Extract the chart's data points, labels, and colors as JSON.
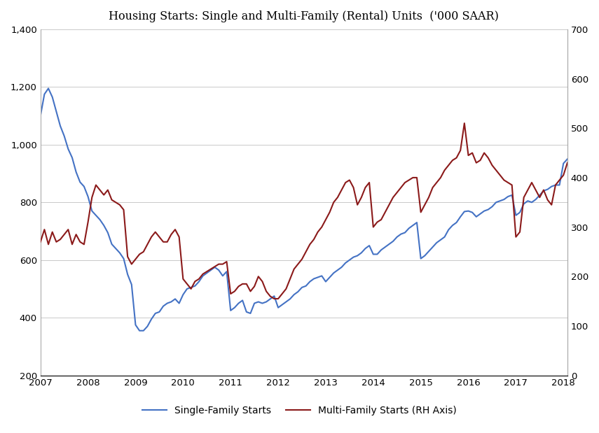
{
  "title": "Housing Starts: Single and Multi-Family (Rental) Units  ('000 SAAR)",
  "left_ylim": [
    200,
    1400
  ],
  "right_ylim": [
    0,
    700
  ],
  "left_yticks": [
    200,
    400,
    600,
    800,
    1000,
    1200,
    1400
  ],
  "right_yticks": [
    0,
    100,
    200,
    300,
    400,
    500,
    600,
    700
  ],
  "xticks": [
    2007,
    2008,
    2009,
    2010,
    2011,
    2012,
    2013,
    2014,
    2015,
    2016,
    2017,
    2018
  ],
  "single_family_color": "#4472C4",
  "multi_family_color": "#8B1A1A",
  "single_label": "Single-Family Starts",
  "multi_label": "Multi-Family Starts (RH Axis)",
  "background_color": "#FFFFFF",
  "line_width": 1.5,
  "single_family": [
    1100,
    1175,
    1195,
    1165,
    1115,
    1065,
    1030,
    985,
    955,
    905,
    870,
    855,
    820,
    770,
    755,
    740,
    720,
    695,
    655,
    640,
    625,
    605,
    550,
    515,
    375,
    355,
    355,
    370,
    395,
    415,
    420,
    440,
    450,
    455,
    465,
    450,
    480,
    500,
    505,
    510,
    525,
    545,
    555,
    565,
    575,
    565,
    545,
    560,
    425,
    435,
    450,
    460,
    420,
    415,
    450,
    455,
    450,
    455,
    465,
    475,
    435,
    445,
    455,
    465,
    480,
    490,
    505,
    510,
    525,
    535,
    540,
    545,
    525,
    540,
    555,
    565,
    575,
    590,
    600,
    610,
    615,
    625,
    640,
    650,
    620,
    620,
    635,
    645,
    655,
    665,
    680,
    690,
    695,
    710,
    720,
    730,
    605,
    615,
    630,
    645,
    660,
    670,
    680,
    705,
    720,
    730,
    750,
    768,
    770,
    765,
    750,
    760,
    770,
    775,
    785,
    800,
    805,
    810,
    820,
    825,
    755,
    765,
    795,
    805,
    800,
    810,
    825,
    840,
    845,
    855,
    860,
    860,
    935,
    950
  ],
  "multi_family": [
    270,
    295,
    265,
    290,
    270,
    275,
    285,
    295,
    265,
    285,
    270,
    265,
    310,
    360,
    385,
    375,
    365,
    375,
    355,
    350,
    345,
    335,
    240,
    225,
    235,
    245,
    250,
    265,
    280,
    290,
    280,
    270,
    270,
    285,
    295,
    280,
    195,
    185,
    175,
    190,
    195,
    205,
    210,
    215,
    220,
    225,
    225,
    230,
    165,
    170,
    180,
    185,
    185,
    170,
    180,
    200,
    190,
    170,
    160,
    155,
    155,
    165,
    175,
    195,
    215,
    225,
    235,
    250,
    265,
    275,
    290,
    300,
    315,
    330,
    350,
    360,
    375,
    390,
    395,
    380,
    345,
    360,
    380,
    390,
    300,
    310,
    315,
    330,
    345,
    360,
    370,
    380,
    390,
    395,
    400,
    400,
    330,
    345,
    360,
    380,
    390,
    400,
    415,
    425,
    435,
    440,
    455,
    510,
    445,
    450,
    430,
    435,
    450,
    440,
    425,
    415,
    405,
    395,
    390,
    385,
    280,
    290,
    360,
    375,
    390,
    375,
    360,
    375,
    355,
    345,
    385,
    395,
    405,
    430
  ]
}
